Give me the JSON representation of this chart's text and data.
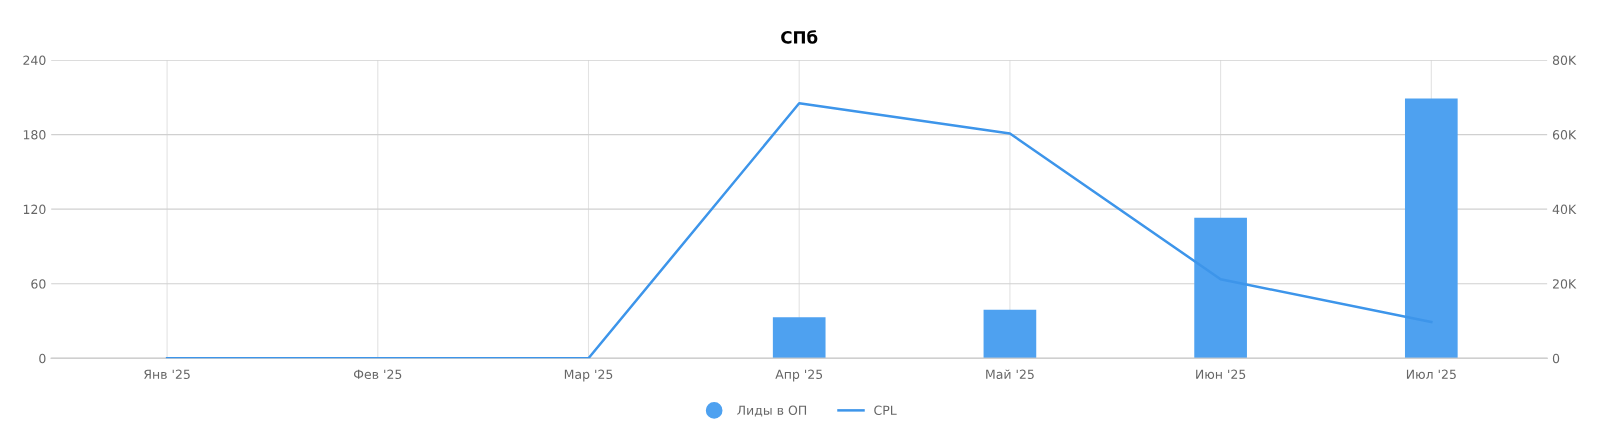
{
  "chart_data": {
    "type": "bar",
    "title": "СПб",
    "categories": [
      "Янв '25",
      "Фев '25",
      "Мар '25",
      "Апр '25",
      "Май '25",
      "Июн '25",
      "Июл '25"
    ],
    "series": [
      {
        "name": "Лиды в ОП",
        "color": "#4ea1f0",
        "values": [
          null,
          null,
          null,
          33,
          39,
          113,
          209
        ]
      },
      {
        "name": "CPL",
        "type": "line",
        "axis": "y2",
        "color": "#3d95ea",
        "values": [
          0,
          0,
          0,
          68400,
          60300,
          21200,
          9700
        ]
      }
    ],
    "ylim": [
      0,
      240
    ],
    "yticks": [
      0,
      60,
      120,
      180,
      240
    ],
    "y2lim": [
      0,
      80000
    ],
    "y2ticks": [
      {
        "value": 0,
        "label": "0"
      },
      {
        "value": 20000,
        "label": "20K"
      },
      {
        "value": 40000,
        "label": "40K"
      },
      {
        "value": 60000,
        "label": "60K"
      },
      {
        "value": 80000,
        "label": "80K"
      }
    ],
    "grid": true,
    "legend": "bottom",
    "marker": "none",
    "line_style": "solid"
  }
}
